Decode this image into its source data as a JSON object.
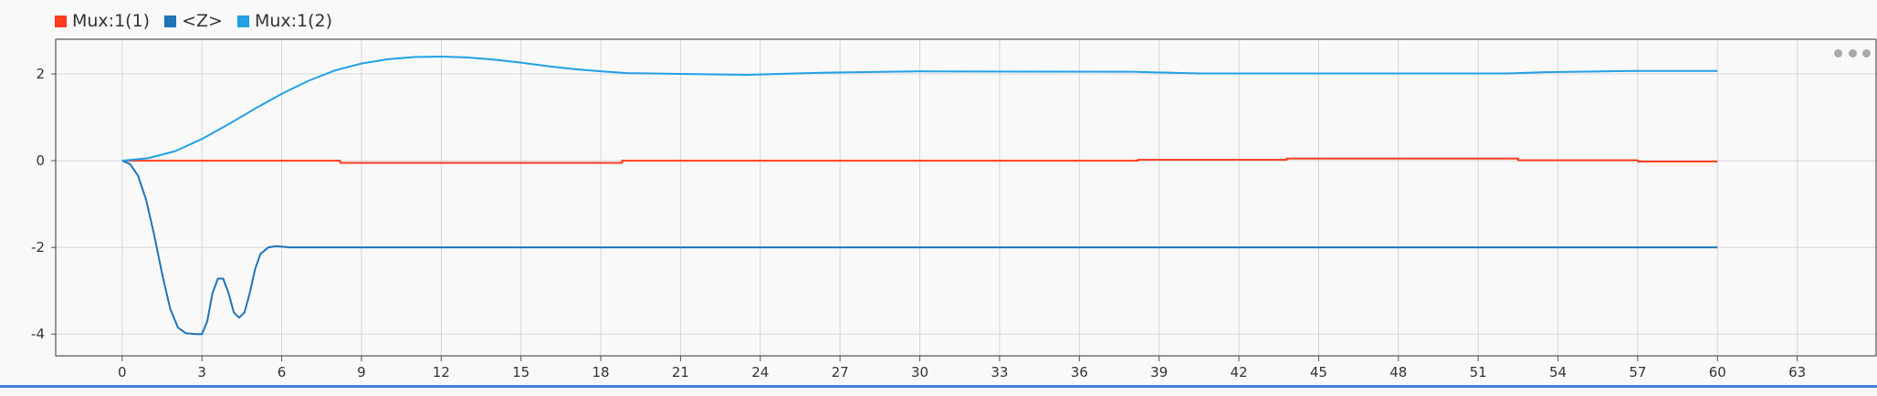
{
  "legend": {
    "items": [
      {
        "label": "Mux:1(1)",
        "color": "#ff3b1f"
      },
      {
        "label": "<Z>",
        "color": "#1f74b8"
      },
      {
        "label": "Mux:1(2)",
        "color": "#21a0e6"
      }
    ]
  },
  "toolbar": {
    "more_icon": "more-horizontal-icon"
  },
  "chart_data": {
    "type": "line",
    "title": "",
    "xlabel": "",
    "ylabel": "",
    "xlim": [
      -2.5,
      66
    ],
    "ylim": [
      -4.5,
      2.8
    ],
    "grid": true,
    "legend_position": "top-left",
    "x_ticks": [
      0,
      3,
      6,
      9,
      12,
      15,
      18,
      21,
      24,
      27,
      30,
      33,
      36,
      39,
      42,
      45,
      48,
      51,
      54,
      57,
      60,
      63
    ],
    "y_ticks": [
      2,
      0,
      -2,
      -4
    ],
    "series": [
      {
        "name": "Mux:1(1)",
        "color": "#ff3b1f",
        "points": [
          [
            0,
            0
          ],
          [
            8.2,
            0
          ],
          [
            8.2,
            -0.05
          ],
          [
            18.8,
            -0.05
          ],
          [
            18.8,
            0
          ],
          [
            38.2,
            0
          ],
          [
            38.2,
            0.02
          ],
          [
            43.8,
            0.02
          ],
          [
            43.8,
            0.05
          ],
          [
            52.5,
            0.05
          ],
          [
            52.5,
            0.01
          ],
          [
            57,
            0.01
          ],
          [
            57,
            -0.02
          ],
          [
            60,
            -0.02
          ]
        ]
      },
      {
        "name": "<Z>",
        "color": "#1f74b8",
        "points": [
          [
            0,
            0
          ],
          [
            0.3,
            -0.08
          ],
          [
            0.6,
            -0.35
          ],
          [
            0.9,
            -0.9
          ],
          [
            1.2,
            -1.7
          ],
          [
            1.5,
            -2.6
          ],
          [
            1.8,
            -3.4
          ],
          [
            2.1,
            -3.85
          ],
          [
            2.4,
            -3.98
          ],
          [
            2.8,
            -4.0
          ],
          [
            3.0,
            -4.0
          ],
          [
            3.2,
            -3.7
          ],
          [
            3.4,
            -3.05
          ],
          [
            3.6,
            -2.72
          ],
          [
            3.8,
            -2.72
          ],
          [
            4.0,
            -3.05
          ],
          [
            4.2,
            -3.5
          ],
          [
            4.4,
            -3.62
          ],
          [
            4.6,
            -3.5
          ],
          [
            4.8,
            -3.05
          ],
          [
            5.0,
            -2.5
          ],
          [
            5.2,
            -2.15
          ],
          [
            5.5,
            -2.0
          ],
          [
            5.8,
            -1.97
          ],
          [
            6.3,
            -2.0
          ],
          [
            60,
            -2.0
          ]
        ]
      },
      {
        "name": "Mux:1(2)",
        "color": "#21a0e6",
        "points": [
          [
            0,
            0
          ],
          [
            1,
            0.06
          ],
          [
            2,
            0.22
          ],
          [
            3,
            0.5
          ],
          [
            4,
            0.84
          ],
          [
            5,
            1.2
          ],
          [
            6,
            1.54
          ],
          [
            7,
            1.84
          ],
          [
            8,
            2.08
          ],
          [
            9,
            2.24
          ],
          [
            10,
            2.34
          ],
          [
            11,
            2.39
          ],
          [
            12,
            2.4
          ],
          [
            13,
            2.38
          ],
          [
            14,
            2.33
          ],
          [
            15,
            2.26
          ],
          [
            16,
            2.18
          ],
          [
            17,
            2.11
          ],
          [
            18,
            2.06
          ],
          [
            19,
            2.02
          ],
          [
            21,
            2.0
          ],
          [
            23.5,
            1.98
          ],
          [
            26.5,
            2.03
          ],
          [
            30,
            2.06
          ],
          [
            38,
            2.05
          ],
          [
            40.5,
            2.01
          ],
          [
            52,
            2.01
          ],
          [
            53.5,
            2.04
          ],
          [
            57,
            2.07
          ],
          [
            60,
            2.07
          ]
        ]
      }
    ]
  }
}
